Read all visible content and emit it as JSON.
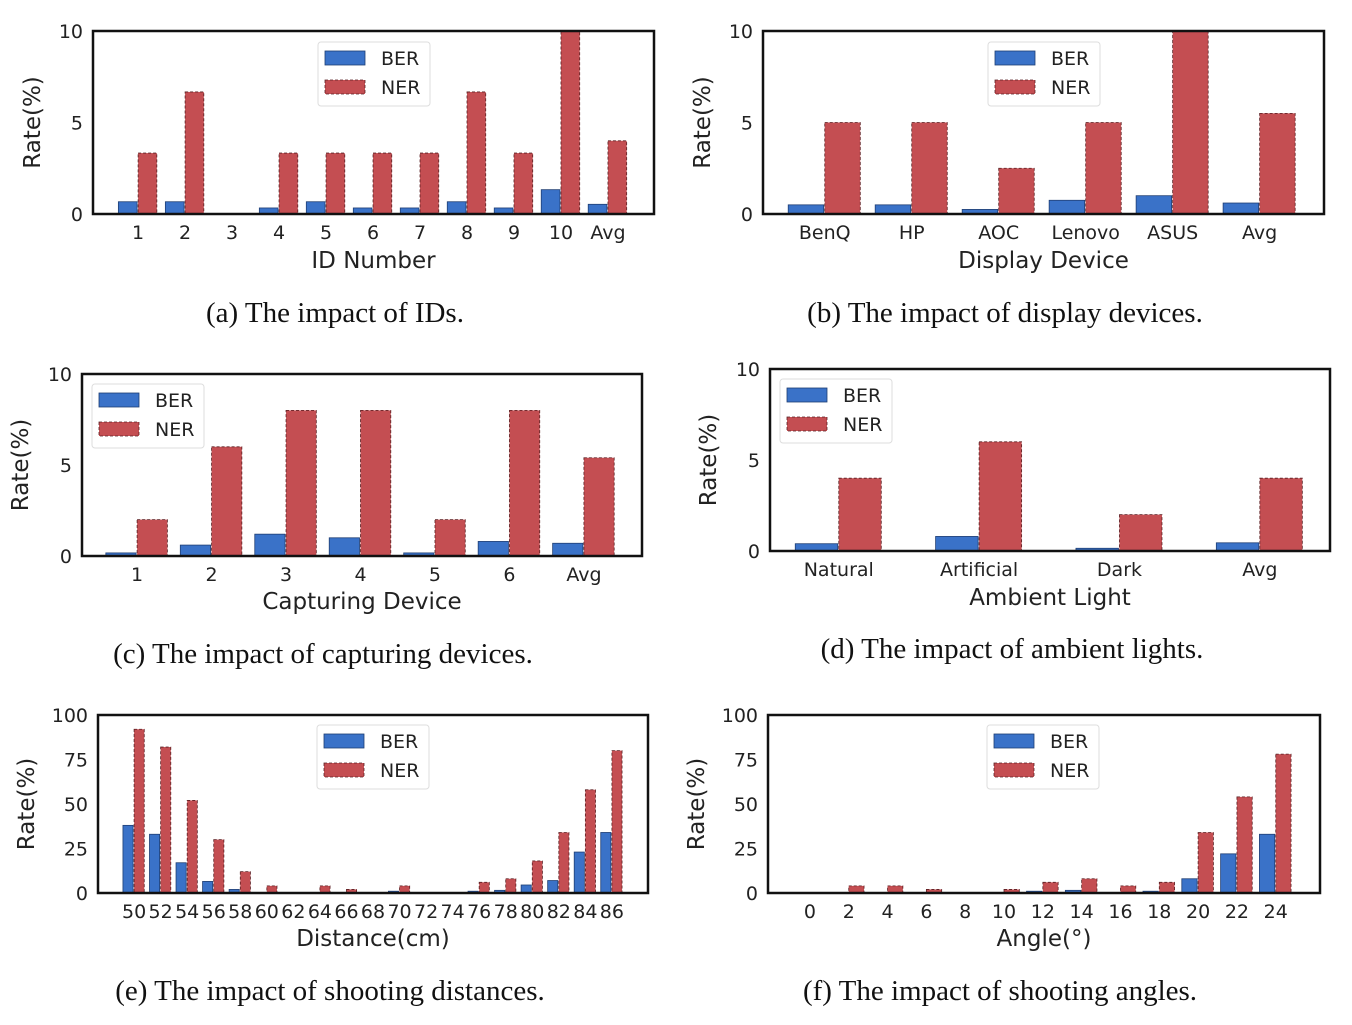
{
  "colors": {
    "ber": "#3a72c8",
    "ner": "#c44e52",
    "frame": "#111111"
  },
  "legend": {
    "ber_label": "BER",
    "ner_label": "NER"
  },
  "chart_data": [
    {
      "id": "a",
      "type": "bar",
      "caption": "(a)  The impact of IDs.",
      "xlabel": "ID Number",
      "ylabel": "Rate(%)",
      "ylim": [
        0,
        10
      ],
      "yticks": [
        0,
        5,
        10
      ],
      "legend_position": "top-center",
      "categories": [
        "1",
        "2",
        "3",
        "4",
        "5",
        "6",
        "7",
        "8",
        "9",
        "10",
        "Avg"
      ],
      "series": [
        {
          "name": "BER",
          "values": [
            0.67,
            0.67,
            0,
            0.33,
            0.67,
            0.33,
            0.33,
            0.67,
            0.33,
            1.33,
            0.53
          ]
        },
        {
          "name": "NER",
          "values": [
            3.33,
            6.67,
            0,
            3.33,
            3.33,
            3.33,
            3.33,
            6.67,
            3.33,
            10,
            4.0
          ]
        }
      ]
    },
    {
      "id": "b",
      "type": "bar",
      "caption": "(b)  The impact of display devices.",
      "xlabel": "Display Device",
      "ylabel": "Rate(%)",
      "ylim": [
        0,
        10
      ],
      "yticks": [
        0,
        5,
        10
      ],
      "legend_position": "top-center",
      "categories": [
        "BenQ",
        "HP",
        "AOC",
        "Lenovo",
        "ASUS",
        "Avg"
      ],
      "series": [
        {
          "name": "BER",
          "values": [
            0.5,
            0.5,
            0.25,
            0.75,
            1.0,
            0.6
          ]
        },
        {
          "name": "NER",
          "values": [
            5,
            5,
            2.5,
            5,
            10,
            5.5
          ]
        }
      ]
    },
    {
      "id": "c",
      "type": "bar",
      "caption": "(c)  The impact of capturing devices.",
      "xlabel": "Capturing Device",
      "ylabel": "Rate(%)",
      "ylim": [
        0,
        10
      ],
      "yticks": [
        0,
        5,
        10
      ],
      "legend_position": "top-left",
      "categories": [
        "1",
        "2",
        "3",
        "4",
        "5",
        "6",
        "Avg"
      ],
      "series": [
        {
          "name": "BER",
          "values": [
            0.17,
            0.6,
            1.2,
            1.0,
            0.17,
            0.8,
            0.7
          ]
        },
        {
          "name": "NER",
          "values": [
            2,
            6,
            8,
            8,
            2,
            8,
            5.4
          ]
        }
      ]
    },
    {
      "id": "d",
      "type": "bar",
      "caption": "(d)  The impact of ambient lights.",
      "xlabel": "Ambient Light",
      "ylabel": "Rate(%)",
      "ylim": [
        0,
        10
      ],
      "yticks": [
        0,
        5,
        10
      ],
      "legend_position": "top-left",
      "categories": [
        "Natural",
        "Artificial",
        "Dark",
        "Avg"
      ],
      "series": [
        {
          "name": "BER",
          "values": [
            0.4,
            0.8,
            0.15,
            0.45
          ]
        },
        {
          "name": "NER",
          "values": [
            4,
            6,
            2,
            4
          ]
        }
      ]
    },
    {
      "id": "e",
      "type": "bar",
      "caption": "(e)  The impact of shooting distances.",
      "xlabel": "Distance(cm)",
      "ylabel": "Rate(%)",
      "ylim": [
        0,
        100
      ],
      "yticks": [
        0,
        25,
        50,
        75,
        100
      ],
      "legend_position": "top-center",
      "categories": [
        "50",
        "52",
        "54",
        "56",
        "58",
        "60",
        "62",
        "64",
        "66",
        "68",
        "70",
        "72",
        "74",
        "76",
        "78",
        "80",
        "82",
        "84",
        "86"
      ],
      "series": [
        {
          "name": "BER",
          "values": [
            38,
            33,
            17,
            6.5,
            2,
            0,
            0,
            0,
            0,
            0,
            1,
            0,
            0,
            1,
            1.5,
            4.5,
            7,
            23,
            34
          ]
        },
        {
          "name": "NER",
          "values": [
            92,
            82,
            52,
            30,
            12,
            4,
            0,
            4,
            2,
            0,
            4,
            0,
            0,
            6,
            8,
            18,
            34,
            58,
            80
          ]
        }
      ]
    },
    {
      "id": "f",
      "type": "bar",
      "caption": "(f)  The impact of shooting angles.",
      "xlabel": "Angle(°)",
      "ylabel": "Rate(%)",
      "ylim": [
        0,
        100
      ],
      "yticks": [
        0,
        25,
        50,
        75,
        100
      ],
      "legend_position": "top-center",
      "categories": [
        "0",
        "2",
        "4",
        "6",
        "8",
        "10",
        "12",
        "14",
        "16",
        "18",
        "20",
        "22",
        "24"
      ],
      "series": [
        {
          "name": "BER",
          "values": [
            0,
            0,
            0,
            0,
            0,
            0,
            1,
            1.5,
            0,
            1,
            8,
            22,
            33
          ]
        },
        {
          "name": "NER",
          "values": [
            0,
            4,
            4,
            2,
            0,
            2,
            6,
            8,
            4,
            6,
            34,
            54,
            78
          ]
        }
      ]
    }
  ]
}
